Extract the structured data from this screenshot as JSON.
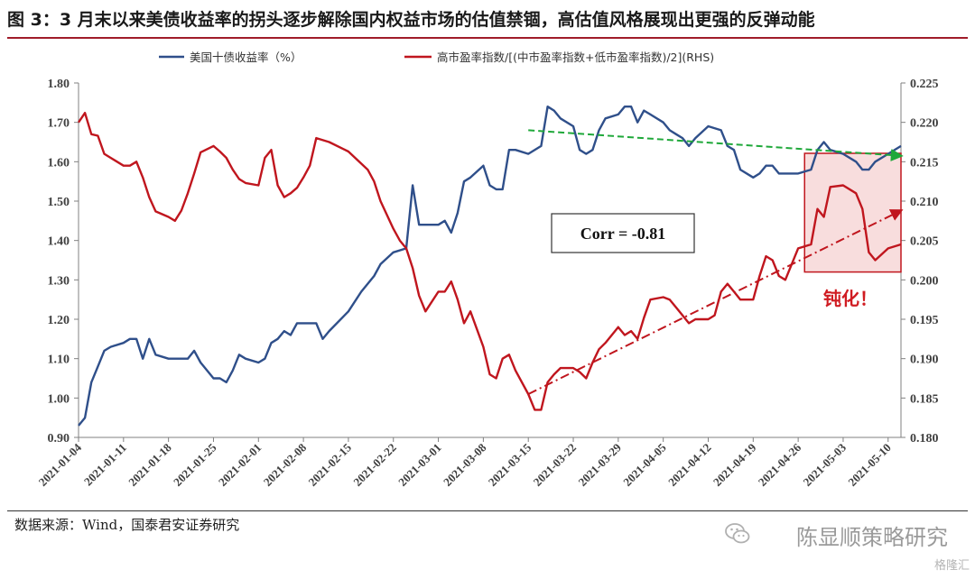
{
  "title": "图 3：3 月末以来美债收益率的拐头逐步解除国内权益市场的估值禁锢，高估值风格展现出更强的反弹动能",
  "source": "数据来源：Wind，国泰君安证券研究",
  "watermark": "陈显顺策略研究",
  "watermark_small": "格隆汇",
  "chart_data": {
    "type": "line",
    "legend_position": "top",
    "grid": false,
    "x_tick_labels": [
      "2021-01-04",
      "2021-01-11",
      "2021-01-18",
      "2021-01-25",
      "2021-02-01",
      "2021-02-08",
      "2021-02-15",
      "2021-02-22",
      "2021-03-01",
      "2021-03-08",
      "2021-03-15",
      "2021-03-22",
      "2021-03-29",
      "2021-04-05",
      "2021-04-12",
      "2021-04-19",
      "2021-04-26",
      "2021-05-03",
      "2021-05-10"
    ],
    "x_range": [
      "2021-01-04",
      "2021-05-12"
    ],
    "y_left": {
      "min": 0.9,
      "max": 1.8,
      "step": 0.1,
      "tick_labels": [
        "0.90",
        "1.00",
        "1.10",
        "1.20",
        "1.30",
        "1.40",
        "1.50",
        "1.60",
        "1.70",
        "1.80"
      ]
    },
    "y_right": {
      "min": 0.18,
      "max": 0.225,
      "step": 0.005,
      "tick_labels": [
        "0.180",
        "0.185",
        "0.190",
        "0.195",
        "0.200",
        "0.205",
        "0.210",
        "0.215",
        "0.220",
        "0.225"
      ]
    },
    "series": [
      {
        "name": "美国十债收益率（%）",
        "axis": "left",
        "color": "#2f4f8a",
        "points": [
          [
            "2021-01-04",
            0.93
          ],
          [
            "2021-01-05",
            0.95
          ],
          [
            "2021-01-06",
            1.04
          ],
          [
            "2021-01-07",
            1.08
          ],
          [
            "2021-01-08",
            1.12
          ],
          [
            "2021-01-09",
            1.13
          ],
          [
            "2021-01-11",
            1.14
          ],
          [
            "2021-01-12",
            1.15
          ],
          [
            "2021-01-13",
            1.15
          ],
          [
            "2021-01-14",
            1.1
          ],
          [
            "2021-01-15",
            1.15
          ],
          [
            "2021-01-16",
            1.11
          ],
          [
            "2021-01-18",
            1.1
          ],
          [
            "2021-01-20",
            1.1
          ],
          [
            "2021-01-21",
            1.1
          ],
          [
            "2021-01-22",
            1.12
          ],
          [
            "2021-01-23",
            1.09
          ],
          [
            "2021-01-25",
            1.05
          ],
          [
            "2021-01-26",
            1.05
          ],
          [
            "2021-01-27",
            1.04
          ],
          [
            "2021-01-28",
            1.07
          ],
          [
            "2021-01-29",
            1.11
          ],
          [
            "2021-01-30",
            1.1
          ],
          [
            "2021-02-01",
            1.09
          ],
          [
            "2021-02-02",
            1.1
          ],
          [
            "2021-02-03",
            1.14
          ],
          [
            "2021-02-04",
            1.15
          ],
          [
            "2021-02-05",
            1.17
          ],
          [
            "2021-02-06",
            1.16
          ],
          [
            "2021-02-07",
            1.19
          ],
          [
            "2021-02-08",
            1.19
          ],
          [
            "2021-02-10",
            1.19
          ],
          [
            "2021-02-11",
            1.15
          ],
          [
            "2021-02-12",
            1.17
          ],
          [
            "2021-02-15",
            1.22
          ],
          [
            "2021-02-17",
            1.27
          ],
          [
            "2021-02-19",
            1.31
          ],
          [
            "2021-02-20",
            1.34
          ],
          [
            "2021-02-22",
            1.37
          ],
          [
            "2021-02-24",
            1.38
          ],
          [
            "2021-02-25",
            1.54
          ],
          [
            "2021-02-26",
            1.44
          ],
          [
            "2021-02-27",
            1.44
          ],
          [
            "2021-03-01",
            1.44
          ],
          [
            "2021-03-02",
            1.45
          ],
          [
            "2021-03-03",
            1.42
          ],
          [
            "2021-03-04",
            1.47
          ],
          [
            "2021-03-05",
            1.55
          ],
          [
            "2021-03-06",
            1.56
          ],
          [
            "2021-03-08",
            1.59
          ],
          [
            "2021-03-09",
            1.54
          ],
          [
            "2021-03-10",
            1.53
          ],
          [
            "2021-03-11",
            1.53
          ],
          [
            "2021-03-12",
            1.63
          ],
          [
            "2021-03-13",
            1.63
          ],
          [
            "2021-03-15",
            1.62
          ],
          [
            "2021-03-17",
            1.64
          ],
          [
            "2021-03-18",
            1.74
          ],
          [
            "2021-03-19",
            1.73
          ],
          [
            "2021-03-20",
            1.71
          ],
          [
            "2021-03-22",
            1.69
          ],
          [
            "2021-03-23",
            1.63
          ],
          [
            "2021-03-24",
            1.62
          ],
          [
            "2021-03-25",
            1.63
          ],
          [
            "2021-03-26",
            1.68
          ],
          [
            "2021-03-27",
            1.71
          ],
          [
            "2021-03-29",
            1.72
          ],
          [
            "2021-03-30",
            1.74
          ],
          [
            "2021-03-31",
            1.74
          ],
          [
            "2021-04-01",
            1.7
          ],
          [
            "2021-04-02",
            1.73
          ],
          [
            "2021-04-03",
            1.72
          ],
          [
            "2021-04-05",
            1.7
          ],
          [
            "2021-04-06",
            1.68
          ],
          [
            "2021-04-07",
            1.67
          ],
          [
            "2021-04-08",
            1.66
          ],
          [
            "2021-04-09",
            1.64
          ],
          [
            "2021-04-10",
            1.66
          ],
          [
            "2021-04-12",
            1.69
          ],
          [
            "2021-04-14",
            1.68
          ],
          [
            "2021-04-15",
            1.64
          ],
          [
            "2021-04-16",
            1.63
          ],
          [
            "2021-04-17",
            1.58
          ],
          [
            "2021-04-19",
            1.56
          ],
          [
            "2021-04-20",
            1.57
          ],
          [
            "2021-04-21",
            1.59
          ],
          [
            "2021-04-22",
            1.59
          ],
          [
            "2021-04-23",
            1.57
          ],
          [
            "2021-04-24",
            1.57
          ],
          [
            "2021-04-26",
            1.57
          ],
          [
            "2021-04-28",
            1.58
          ],
          [
            "2021-04-29",
            1.63
          ],
          [
            "2021-04-30",
            1.65
          ],
          [
            "2021-05-01",
            1.63
          ],
          [
            "2021-05-03",
            1.62
          ],
          [
            "2021-05-05",
            1.6
          ],
          [
            "2021-05-06",
            1.58
          ],
          [
            "2021-05-07",
            1.58
          ],
          [
            "2021-05-08",
            1.6
          ],
          [
            "2021-05-10",
            1.62
          ],
          [
            "2021-05-12",
            1.64
          ]
        ]
      },
      {
        "name": "高市盈率指数/[(中市盈率指数+低市盈率指数)/2](RHS)",
        "axis": "right",
        "color": "#c0161e",
        "points": [
          [
            "2021-01-04",
            0.22
          ],
          [
            "2021-01-05",
            0.2212
          ],
          [
            "2021-01-06",
            0.2185
          ],
          [
            "2021-01-07",
            0.2183
          ],
          [
            "2021-01-08",
            0.216
          ],
          [
            "2021-01-09",
            0.2155
          ],
          [
            "2021-01-11",
            0.2145
          ],
          [
            "2021-01-12",
            0.2145
          ],
          [
            "2021-01-13",
            0.215
          ],
          [
            "2021-01-14",
            0.213
          ],
          [
            "2021-01-15",
            0.2105
          ],
          [
            "2021-01-16",
            0.2087
          ],
          [
            "2021-01-18",
            0.208
          ],
          [
            "2021-01-19",
            0.2075
          ],
          [
            "2021-01-20",
            0.2088
          ],
          [
            "2021-01-21",
            0.211
          ],
          [
            "2021-01-22",
            0.2135
          ],
          [
            "2021-01-23",
            0.2162
          ],
          [
            "2021-01-25",
            0.217
          ],
          [
            "2021-01-26",
            0.2163
          ],
          [
            "2021-01-27",
            0.2155
          ],
          [
            "2021-01-28",
            0.214
          ],
          [
            "2021-01-29",
            0.2128
          ],
          [
            "2021-01-30",
            0.2123
          ],
          [
            "2021-02-01",
            0.212
          ],
          [
            "2021-02-02",
            0.2155
          ],
          [
            "2021-02-03",
            0.2165
          ],
          [
            "2021-02-04",
            0.212
          ],
          [
            "2021-02-05",
            0.2105
          ],
          [
            "2021-02-06",
            0.211
          ],
          [
            "2021-02-07",
            0.2117
          ],
          [
            "2021-02-08",
            0.213
          ],
          [
            "2021-02-09",
            0.2145
          ],
          [
            "2021-02-10",
            0.218
          ],
          [
            "2021-02-12",
            0.2175
          ],
          [
            "2021-02-15",
            0.2163
          ],
          [
            "2021-02-18",
            0.214
          ],
          [
            "2021-02-19",
            0.2125
          ],
          [
            "2021-02-20",
            0.21
          ],
          [
            "2021-02-22",
            0.2065
          ],
          [
            "2021-02-23",
            0.205
          ],
          [
            "2021-02-24",
            0.204
          ],
          [
            "2021-02-25",
            0.2015
          ],
          [
            "2021-02-26",
            0.198
          ],
          [
            "2021-02-27",
            0.196
          ],
          [
            "2021-03-01",
            0.1985
          ],
          [
            "2021-03-02",
            0.1985
          ],
          [
            "2021-03-03",
            0.1998
          ],
          [
            "2021-03-04",
            0.1975
          ],
          [
            "2021-03-05",
            0.1945
          ],
          [
            "2021-03-06",
            0.196
          ],
          [
            "2021-03-08",
            0.1915
          ],
          [
            "2021-03-09",
            0.188
          ],
          [
            "2021-03-10",
            0.1875
          ],
          [
            "2021-03-11",
            0.19
          ],
          [
            "2021-03-12",
            0.1905
          ],
          [
            "2021-03-13",
            0.1885
          ],
          [
            "2021-03-15",
            0.1855
          ],
          [
            "2021-03-16",
            0.1835
          ],
          [
            "2021-03-17",
            0.1835
          ],
          [
            "2021-03-18",
            0.187
          ],
          [
            "2021-03-19",
            0.188
          ],
          [
            "2021-03-20",
            0.1888
          ],
          [
            "2021-03-22",
            0.1888
          ],
          [
            "2021-03-23",
            0.1883
          ],
          [
            "2021-03-24",
            0.1875
          ],
          [
            "2021-03-25",
            0.1895
          ],
          [
            "2021-03-26",
            0.1912
          ],
          [
            "2021-03-27",
            0.192
          ],
          [
            "2021-03-29",
            0.194
          ],
          [
            "2021-03-30",
            0.193
          ],
          [
            "2021-03-31",
            0.1935
          ],
          [
            "2021-04-01",
            0.1925
          ],
          [
            "2021-04-02",
            0.1952
          ],
          [
            "2021-04-03",
            0.1975
          ],
          [
            "2021-04-05",
            0.1978
          ],
          [
            "2021-04-06",
            0.1975
          ],
          [
            "2021-04-07",
            0.1965
          ],
          [
            "2021-04-08",
            0.1955
          ],
          [
            "2021-04-09",
            0.1945
          ],
          [
            "2021-04-10",
            0.195
          ],
          [
            "2021-04-12",
            0.195
          ],
          [
            "2021-04-13",
            0.1955
          ],
          [
            "2021-04-14",
            0.1985
          ],
          [
            "2021-04-15",
            0.1995
          ],
          [
            "2021-04-16",
            0.1985
          ],
          [
            "2021-04-17",
            0.1975
          ],
          [
            "2021-04-19",
            0.1975
          ],
          [
            "2021-04-20",
            0.2005
          ],
          [
            "2021-04-21",
            0.203
          ],
          [
            "2021-04-22",
            0.2025
          ],
          [
            "2021-04-23",
            0.2005
          ],
          [
            "2021-04-24",
            0.2
          ],
          [
            "2021-04-26",
            0.204
          ],
          [
            "2021-04-28",
            0.2045
          ],
          [
            "2021-04-29",
            0.209
          ],
          [
            "2021-04-30",
            0.208
          ],
          [
            "2021-05-01",
            0.2118
          ],
          [
            "2021-05-03",
            0.212
          ],
          [
            "2021-05-05",
            0.211
          ],
          [
            "2021-05-06",
            0.209
          ],
          [
            "2021-05-07",
            0.2035
          ],
          [
            "2021-05-08",
            0.2025
          ],
          [
            "2021-05-10",
            0.204
          ],
          [
            "2021-05-12",
            0.2045
          ]
        ]
      }
    ],
    "annotations": {
      "correlation_label": "Corr = -0.81",
      "blunted_label": "钝化！",
      "highlight_box": {
        "x_from": "2021-04-27",
        "x_to": "2021-05-12",
        "y_left_from": 1.32,
        "y_left_to": 1.92
      },
      "trend_arrows": [
        {
          "color": "#1fa83a",
          "axis": "left",
          "from": [
            "2021-03-15",
            1.68
          ],
          "to": [
            "2021-05-12",
            1.615
          ]
        },
        {
          "color": "#c0161e",
          "axis": "right",
          "from": [
            "2021-03-15",
            0.1855
          ],
          "to": [
            "2021-05-12",
            0.2088
          ]
        }
      ]
    }
  }
}
